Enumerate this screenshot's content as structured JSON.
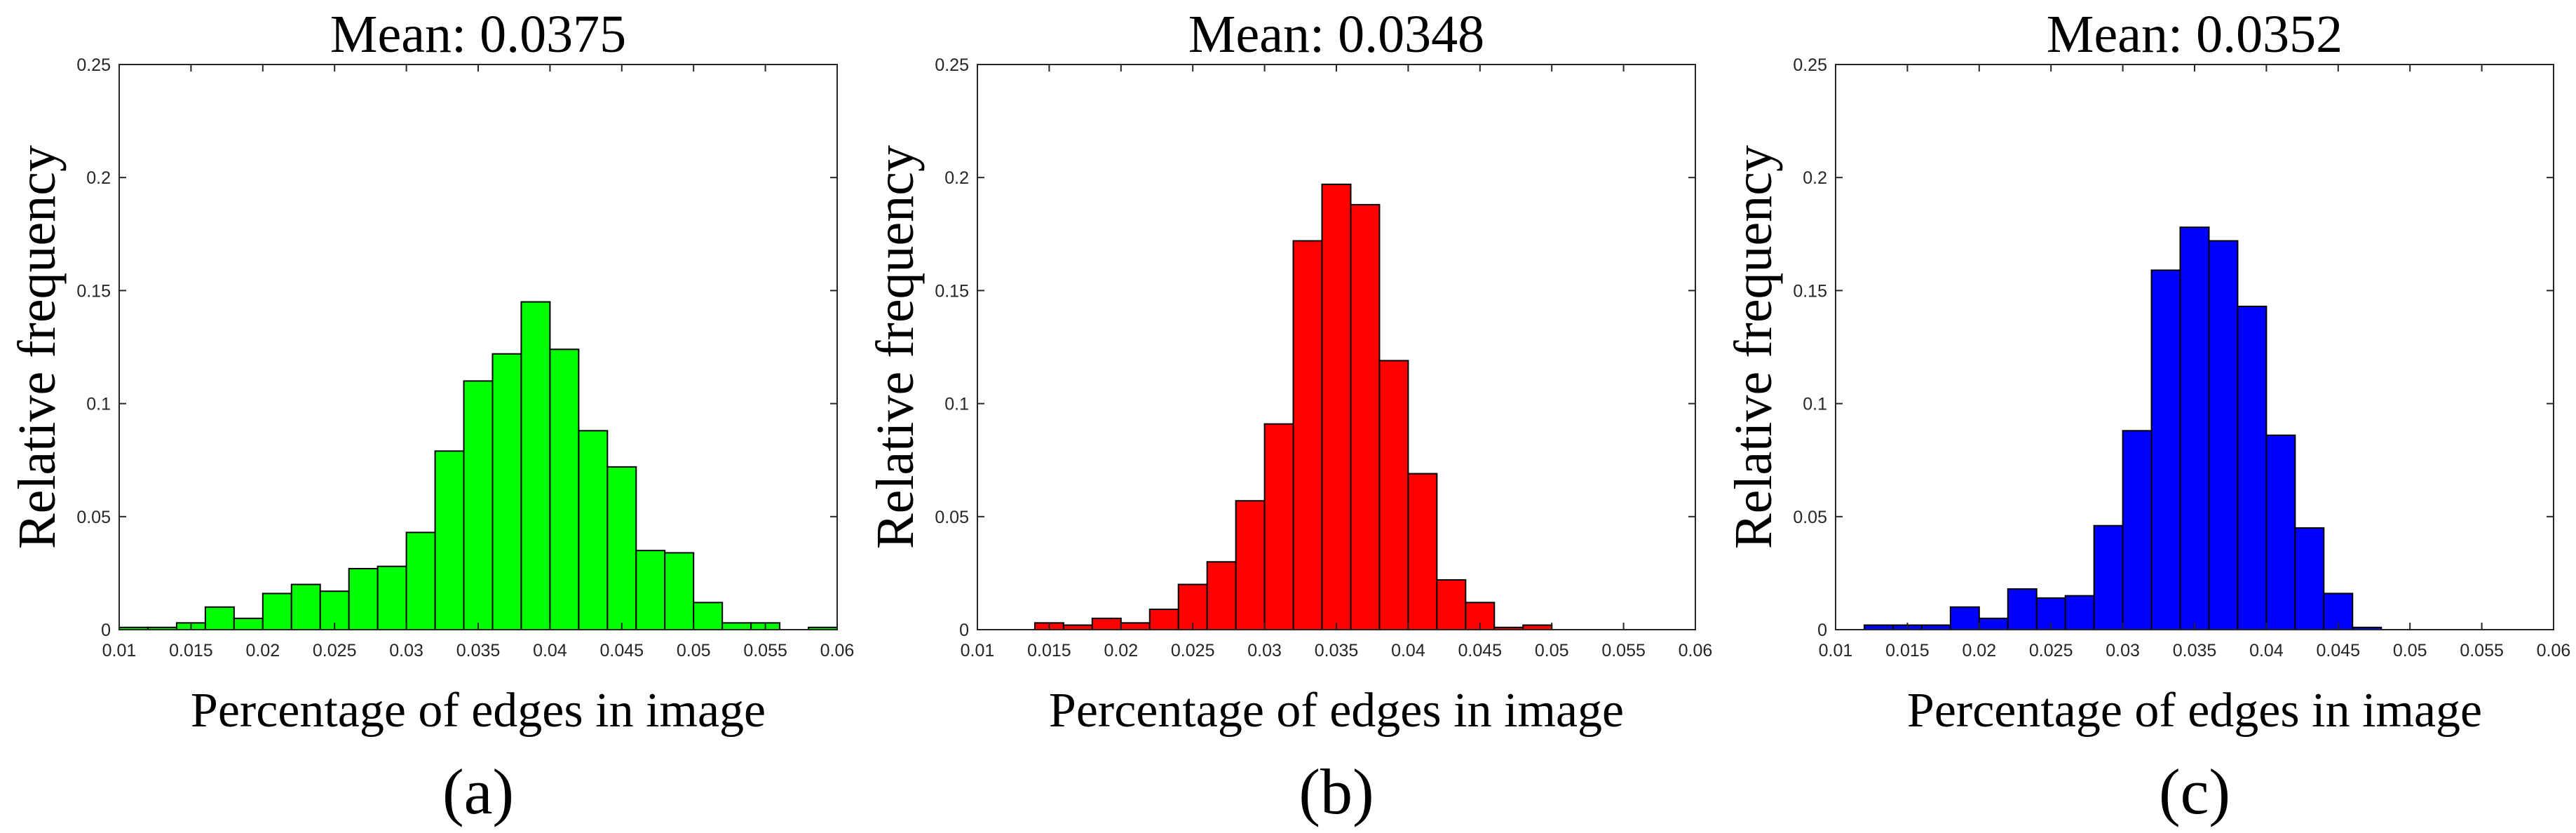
{
  "chart_data": [
    {
      "type": "bar",
      "panel_label": "(a)",
      "title": "Mean: 0.0375",
      "xlabel": "Percentage of edges in image",
      "ylabel": "Relative frequency",
      "xlim": [
        0.01,
        0.06
      ],
      "ylim": [
        0,
        0.25
      ],
      "xticks": [
        "0.01",
        "0.015",
        "0.02",
        "0.025",
        "0.03",
        "0.035",
        "0.04",
        "0.045",
        "0.05",
        "0.055",
        "0.06"
      ],
      "yticks": [
        "0",
        "0.05",
        "0.1",
        "0.15",
        "0.2",
        "0.25"
      ],
      "color": "#00ff00",
      "bins": {
        "start": 0.01,
        "width": 0.002,
        "values": [
          0.001,
          0.001,
          0.003,
          0.01,
          0.005,
          0.016,
          0.02,
          0.017,
          0.027,
          0.028,
          0.043,
          0.079,
          0.11,
          0.122,
          0.145,
          0.124,
          0.088,
          0.072,
          0.035,
          0.034,
          0.012,
          0.003,
          0.003,
          0.0,
          0.001
        ]
      }
    },
    {
      "type": "bar",
      "panel_label": "(b)",
      "title": "Mean: 0.0348",
      "xlabel": "Percentage of edges in image",
      "ylabel": "Relative frequency",
      "xlim": [
        0.01,
        0.06
      ],
      "ylim": [
        0,
        0.25
      ],
      "xticks": [
        "0.01",
        "0.015",
        "0.02",
        "0.025",
        "0.03",
        "0.035",
        "0.04",
        "0.045",
        "0.05",
        "0.055",
        "0.06"
      ],
      "yticks": [
        "0",
        "0.05",
        "0.1",
        "0.15",
        "0.2",
        "0.25"
      ],
      "color": "#ff0000",
      "bins": {
        "start": 0.014,
        "width": 0.002,
        "values": [
          0.003,
          0.002,
          0.005,
          0.003,
          0.009,
          0.02,
          0.03,
          0.057,
          0.091,
          0.172,
          0.197,
          0.188,
          0.119,
          0.069,
          0.022,
          0.012,
          0.001,
          0.002
        ]
      }
    },
    {
      "type": "bar",
      "panel_label": "(c)",
      "title": "Mean: 0.0352",
      "xlabel": "Percentage of edges in image",
      "ylabel": "Relative frequency",
      "xlim": [
        0.01,
        0.06
      ],
      "ylim": [
        0,
        0.25
      ],
      "xticks": [
        "0.01",
        "0.015",
        "0.02",
        "0.025",
        "0.03",
        "0.035",
        "0.04",
        "0.045",
        "0.05",
        "0.055",
        "0.06"
      ],
      "yticks": [
        "0",
        "0.05",
        "0.1",
        "0.15",
        "0.2",
        "0.25"
      ],
      "color": "#0000ff",
      "bins": {
        "start": 0.012,
        "width": 0.002,
        "values": [
          0.002,
          0.002,
          0.002,
          0.01,
          0.005,
          0.018,
          0.014,
          0.015,
          0.046,
          0.088,
          0.159,
          0.178,
          0.172,
          0.143,
          0.086,
          0.045,
          0.016,
          0.001
        ]
      }
    }
  ]
}
